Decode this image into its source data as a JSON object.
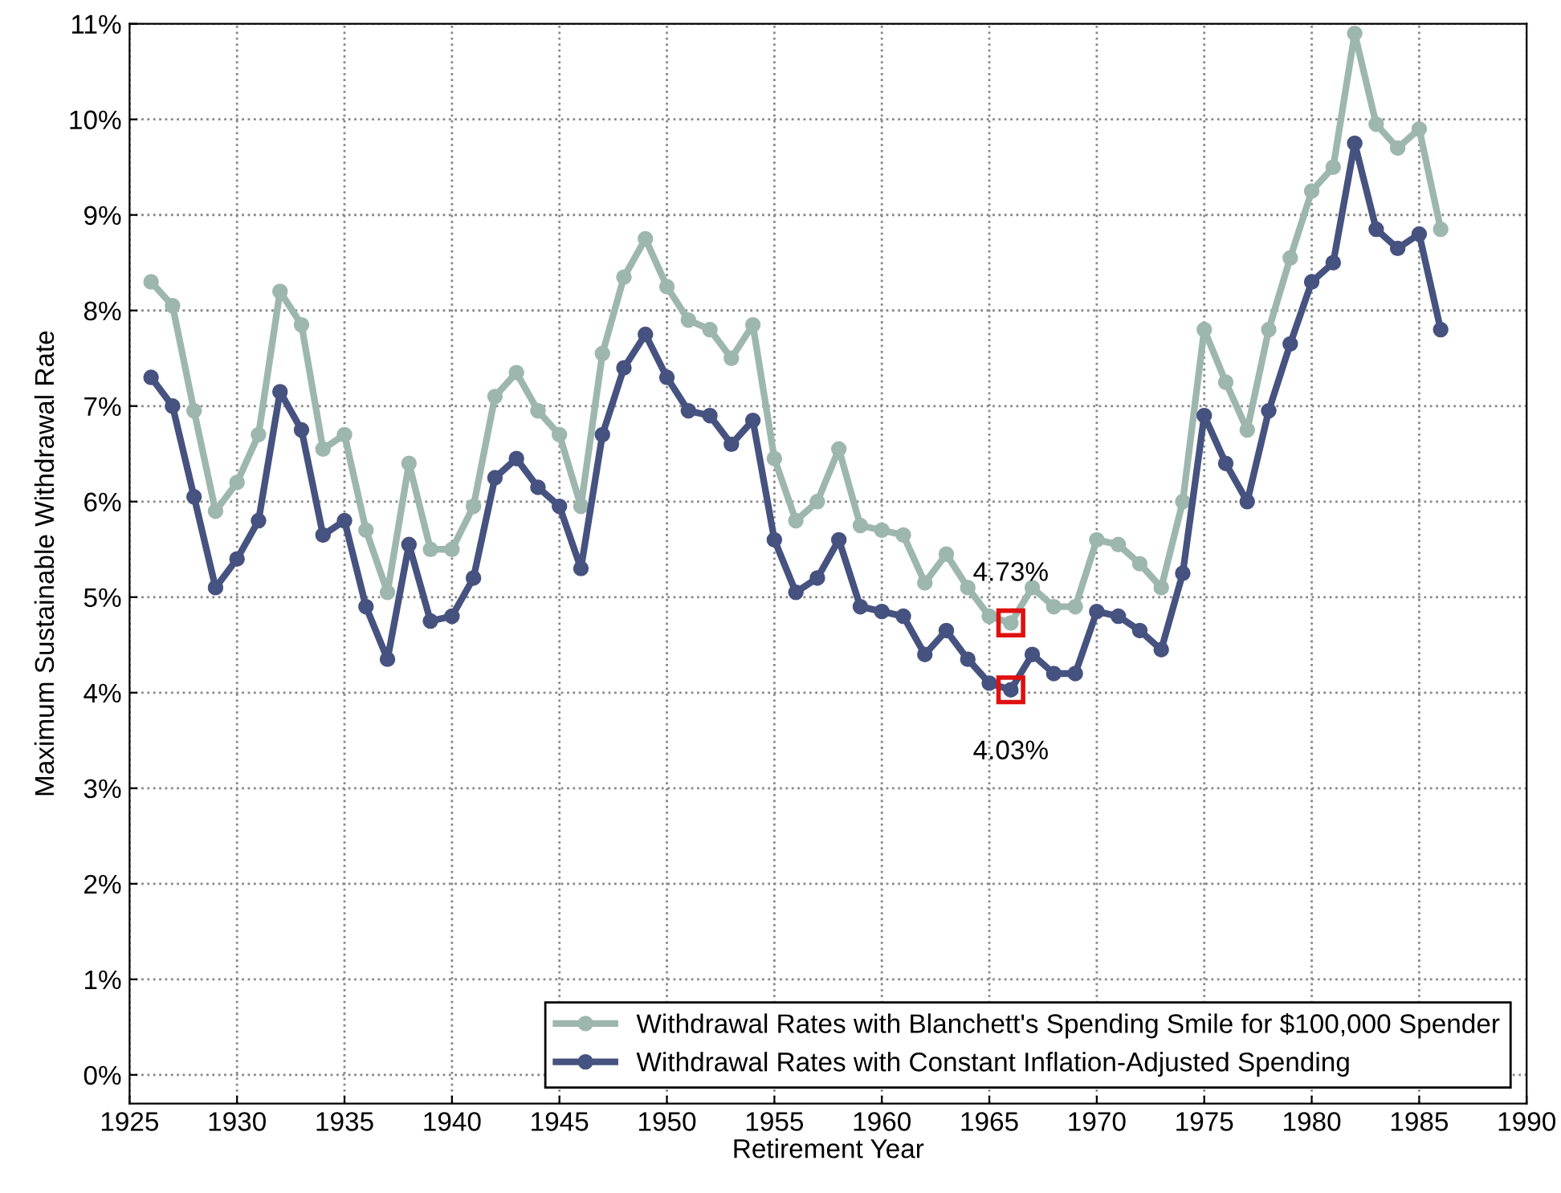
{
  "chart_data": {
    "type": "line",
    "xlabel": "Retirement Year",
    "ylabel": "Maximum Sustainable Withdrawal Rate",
    "x": [
      1926,
      1927,
      1928,
      1929,
      1930,
      1931,
      1932,
      1933,
      1934,
      1935,
      1936,
      1937,
      1938,
      1939,
      1940,
      1941,
      1942,
      1943,
      1944,
      1945,
      1946,
      1947,
      1948,
      1949,
      1950,
      1951,
      1952,
      1953,
      1954,
      1955,
      1956,
      1957,
      1958,
      1959,
      1960,
      1961,
      1962,
      1963,
      1964,
      1965,
      1966,
      1967,
      1968,
      1969,
      1970,
      1971,
      1972,
      1973,
      1974,
      1975,
      1976,
      1977,
      1978,
      1979,
      1980,
      1981,
      1982,
      1983,
      1984,
      1985,
      1986
    ],
    "series": [
      {
        "name": "Withdrawal Rates with Blanchett's Spending Smile for $100,000 Spender",
        "color": "#9db7ae",
        "values": [
          8.3,
          8.05,
          6.95,
          5.9,
          6.2,
          6.7,
          8.2,
          7.85,
          6.55,
          6.7,
          5.7,
          5.05,
          6.4,
          5.5,
          5.5,
          5.95,
          7.1,
          7.35,
          6.95,
          6.7,
          5.95,
          7.55,
          8.35,
          8.75,
          8.25,
          7.9,
          7.8,
          7.5,
          7.85,
          6.45,
          5.8,
          6.0,
          6.55,
          5.75,
          5.7,
          5.65,
          5.15,
          5.45,
          5.1,
          4.8,
          4.73,
          5.1,
          4.9,
          4.9,
          5.6,
          5.55,
          5.35,
          5.1,
          6.0,
          7.8,
          7.25,
          6.75,
          7.8,
          8.55,
          9.25,
          9.5,
          10.9,
          9.95,
          9.7,
          9.9,
          8.85
        ]
      },
      {
        "name": "Withdrawal Rates with Constant Inflation-Adjusted Spending",
        "color": "#46527f",
        "values": [
          7.3,
          7.0,
          6.05,
          5.1,
          5.4,
          5.8,
          7.15,
          6.75,
          5.65,
          5.8,
          4.9,
          4.35,
          5.55,
          4.75,
          4.8,
          5.2,
          6.25,
          6.45,
          6.15,
          5.95,
          5.3,
          6.7,
          7.4,
          7.75,
          7.3,
          6.95,
          6.9,
          6.6,
          6.85,
          5.6,
          5.05,
          5.2,
          5.6,
          4.9,
          4.85,
          4.8,
          4.4,
          4.65,
          4.35,
          4.1,
          4.03,
          4.4,
          4.2,
          4.2,
          4.85,
          4.8,
          4.65,
          4.45,
          5.25,
          6.9,
          6.4,
          6.0,
          6.95,
          7.65,
          8.3,
          8.5,
          9.75,
          8.85,
          8.65,
          8.8,
          7.8
        ]
      }
    ],
    "annotations": [
      {
        "text": "4.73%",
        "x": 1966,
        "y": 4.73
      },
      {
        "text": "4.03%",
        "x": 1966,
        "y": 4.03
      }
    ],
    "xlim": [
      1925,
      1990
    ],
    "xticks": [
      1925,
      1930,
      1935,
      1940,
      1945,
      1950,
      1955,
      1960,
      1965,
      1970,
      1975,
      1980,
      1985,
      1990
    ],
    "ylim": [
      -0.3,
      11
    ],
    "yticks": [
      {
        "value": 0,
        "label": "0%"
      },
      {
        "value": 1,
        "label": "1%"
      },
      {
        "value": 2,
        "label": "2%"
      },
      {
        "value": 3,
        "label": "3%"
      },
      {
        "value": 4,
        "label": "4%"
      },
      {
        "value": 5,
        "label": "5%"
      },
      {
        "value": 6,
        "label": "6%"
      },
      {
        "value": 7,
        "label": "7%"
      },
      {
        "value": 8,
        "label": "8%"
      },
      {
        "value": 9,
        "label": "9%"
      },
      {
        "value": 10,
        "label": "10%"
      },
      {
        "value": 11,
        "label": "11%"
      }
    ],
    "grid": true,
    "legend": "bottom right",
    "marker": "circle",
    "line_style": "solid"
  }
}
